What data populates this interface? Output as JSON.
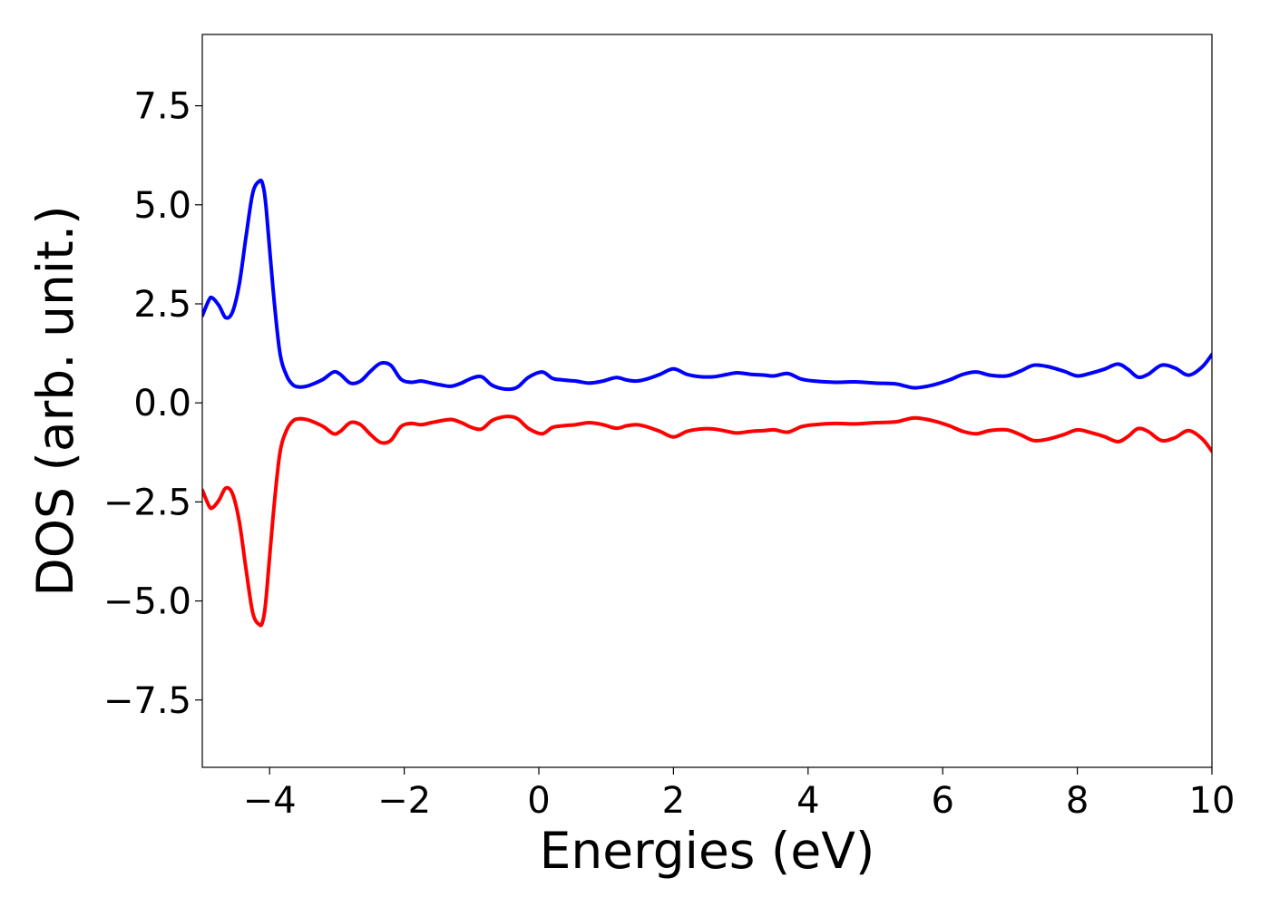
{
  "chart_data": {
    "type": "line",
    "title": "",
    "xlabel": "Energies (eV)",
    "ylabel": "DOS (arb. unit.)",
    "xlim": [
      -5,
      10
    ],
    "ylim": [
      -9.2,
      9.3
    ],
    "xticks": [
      -4,
      -2,
      0,
      2,
      4,
      6,
      8,
      10
    ],
    "xtick_labels": [
      "−4",
      "−2",
      "0",
      "2",
      "4",
      "6",
      "8",
      "10"
    ],
    "yticks": [
      7.5,
      5.0,
      2.5,
      0.0,
      -2.5,
      -5.0,
      -7.5
    ],
    "ytick_labels": [
      "7.5",
      "5.0",
      "2.5",
      "0.0",
      "−2.5",
      "−5.0",
      "−7.5"
    ],
    "grid": false,
    "legend": false,
    "series": [
      {
        "color": "#0000ff",
        "x": [
          -5.0,
          -4.9,
          -4.85,
          -4.75,
          -4.65,
          -4.55,
          -4.45,
          -4.35,
          -4.25,
          -4.15,
          -4.1,
          -4.05,
          -3.95,
          -3.85,
          -3.75,
          -3.65,
          -3.55,
          -3.45,
          -3.35,
          -3.2,
          -3.05,
          -2.95,
          -2.8,
          -2.65,
          -2.5,
          -2.35,
          -2.2,
          -2.05,
          -1.9,
          -1.75,
          -1.6,
          -1.45,
          -1.3,
          -1.15,
          -1.0,
          -0.85,
          -0.7,
          -0.55,
          -0.4,
          -0.3,
          -0.15,
          0.05,
          0.2,
          0.35,
          0.55,
          0.75,
          0.95,
          1.15,
          1.3,
          1.45,
          1.6,
          1.8,
          2.0,
          2.2,
          2.4,
          2.6,
          2.8,
          2.95,
          3.15,
          3.35,
          3.5,
          3.7,
          3.9,
          4.1,
          4.4,
          4.7,
          5.0,
          5.3,
          5.45,
          5.6,
          5.85,
          6.1,
          6.3,
          6.5,
          6.7,
          6.95,
          7.15,
          7.35,
          7.55,
          7.8,
          8.0,
          8.2,
          8.4,
          8.6,
          8.75,
          8.9,
          9.05,
          9.25,
          9.45,
          9.65,
          9.85,
          10.0
        ],
        "y": [
          2.2,
          2.6,
          2.65,
          2.45,
          2.15,
          2.3,
          3.0,
          4.2,
          5.3,
          5.6,
          5.5,
          4.9,
          2.9,
          1.3,
          0.7,
          0.45,
          0.4,
          0.42,
          0.48,
          0.6,
          0.78,
          0.72,
          0.5,
          0.55,
          0.8,
          1.0,
          0.95,
          0.6,
          0.52,
          0.55,
          0.5,
          0.45,
          0.42,
          0.5,
          0.62,
          0.66,
          0.45,
          0.36,
          0.35,
          0.42,
          0.65,
          0.78,
          0.62,
          0.58,
          0.55,
          0.5,
          0.55,
          0.64,
          0.58,
          0.55,
          0.6,
          0.72,
          0.86,
          0.72,
          0.66,
          0.66,
          0.72,
          0.76,
          0.72,
          0.7,
          0.68,
          0.74,
          0.6,
          0.55,
          0.52,
          0.53,
          0.5,
          0.48,
          0.42,
          0.38,
          0.45,
          0.58,
          0.72,
          0.78,
          0.7,
          0.68,
          0.8,
          0.95,
          0.92,
          0.8,
          0.68,
          0.75,
          0.85,
          0.98,
          0.85,
          0.65,
          0.72,
          0.95,
          0.88,
          0.7,
          0.9,
          1.22
        ]
      },
      {
        "color": "#ff0000",
        "x": [
          -5.0,
          -4.9,
          -4.85,
          -4.75,
          -4.65,
          -4.55,
          -4.45,
          -4.35,
          -4.25,
          -4.15,
          -4.1,
          -4.05,
          -3.95,
          -3.85,
          -3.75,
          -3.65,
          -3.55,
          -3.45,
          -3.35,
          -3.2,
          -3.05,
          -2.95,
          -2.8,
          -2.65,
          -2.5,
          -2.35,
          -2.2,
          -2.05,
          -1.9,
          -1.75,
          -1.6,
          -1.45,
          -1.3,
          -1.15,
          -1.0,
          -0.85,
          -0.7,
          -0.55,
          -0.4,
          -0.3,
          -0.15,
          0.05,
          0.2,
          0.35,
          0.55,
          0.75,
          0.95,
          1.15,
          1.3,
          1.45,
          1.6,
          1.8,
          2.0,
          2.2,
          2.4,
          2.6,
          2.8,
          2.95,
          3.15,
          3.35,
          3.5,
          3.7,
          3.9,
          4.1,
          4.4,
          4.7,
          5.0,
          5.3,
          5.45,
          5.6,
          5.85,
          6.1,
          6.3,
          6.5,
          6.7,
          6.95,
          7.15,
          7.35,
          7.55,
          7.8,
          8.0,
          8.2,
          8.4,
          8.6,
          8.75,
          8.9,
          9.05,
          9.25,
          9.45,
          9.65,
          9.85,
          10.0
        ],
        "y": [
          -2.2,
          -2.6,
          -2.65,
          -2.45,
          -2.15,
          -2.3,
          -3.0,
          -4.2,
          -5.3,
          -5.6,
          -5.5,
          -4.9,
          -2.9,
          -1.3,
          -0.7,
          -0.45,
          -0.4,
          -0.42,
          -0.48,
          -0.6,
          -0.78,
          -0.72,
          -0.5,
          -0.55,
          -0.8,
          -1.0,
          -0.95,
          -0.6,
          -0.52,
          -0.55,
          -0.5,
          -0.45,
          -0.42,
          -0.5,
          -0.62,
          -0.66,
          -0.45,
          -0.36,
          -0.35,
          -0.42,
          -0.65,
          -0.78,
          -0.62,
          -0.58,
          -0.55,
          -0.5,
          -0.55,
          -0.64,
          -0.58,
          -0.55,
          -0.6,
          -0.72,
          -0.86,
          -0.72,
          -0.66,
          -0.66,
          -0.72,
          -0.76,
          -0.72,
          -0.7,
          -0.68,
          -0.74,
          -0.6,
          -0.55,
          -0.52,
          -0.53,
          -0.5,
          -0.48,
          -0.42,
          -0.38,
          -0.45,
          -0.58,
          -0.72,
          -0.78,
          -0.7,
          -0.68,
          -0.8,
          -0.95,
          -0.92,
          -0.8,
          -0.68,
          -0.75,
          -0.85,
          -0.98,
          -0.85,
          -0.65,
          -0.72,
          -0.95,
          -0.88,
          -0.7,
          -0.9,
          -1.22
        ]
      }
    ]
  }
}
